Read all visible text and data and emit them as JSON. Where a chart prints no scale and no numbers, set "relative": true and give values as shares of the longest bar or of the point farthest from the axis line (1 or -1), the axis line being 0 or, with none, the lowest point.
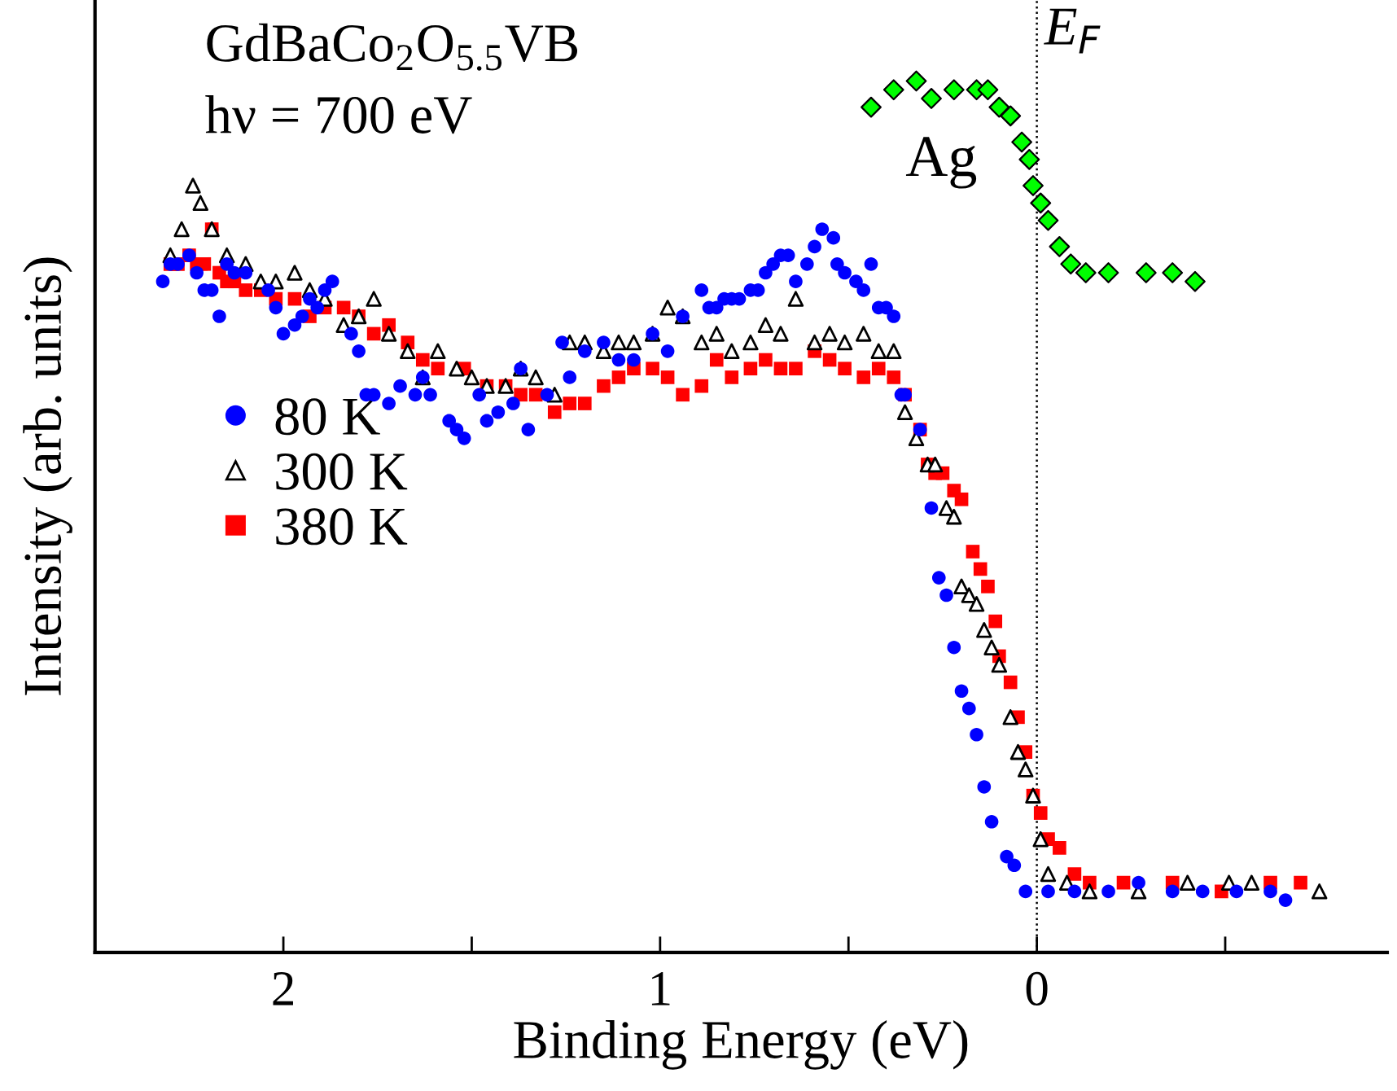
{
  "chart_data": {
    "type": "scatter",
    "xlabel": "Binding Energy (eV)",
    "ylabel": "Intensity (arb. units)",
    "relative": true,
    "xlim": [
      2.5,
      -0.93
    ],
    "xticks": [
      2,
      {
        "value": 1.5,
        "label": null
      },
      1,
      {
        "value": 0.5,
        "label": null
      },
      0,
      {
        "value": -0.5,
        "label": null
      }
    ],
    "tick_labels": "x",
    "grid": false,
    "legend": "center left",
    "annotations": [
      "GdBaCo$_{2}$O$_{5.5}$VB",
      "hν = 700 eV",
      "Ag"
    ],
    "ref_lines": [
      {
        "axis": "x",
        "value": 0,
        "label": "E$_{F}$",
        "color": "#000000",
        "line_style": "dotted"
      }
    ],
    "series": [
      {
        "name": "80 K",
        "color": "#0000ff",
        "marker": "circle",
        "x": [
          2.32,
          2.3,
          2.28,
          2.25,
          2.23,
          2.21,
          2.19,
          2.17,
          2.15,
          2.13,
          2.1,
          2.04,
          2.02,
          2.0,
          1.97,
          1.95,
          1.93,
          1.91,
          1.89,
          1.87,
          1.82,
          1.8,
          1.78,
          1.76,
          1.72,
          1.69,
          1.65,
          1.63,
          1.61,
          1.56,
          1.54,
          1.52,
          1.48,
          1.46,
          1.43,
          1.39,
          1.37,
          1.35,
          1.3,
          1.26,
          1.24,
          1.2,
          1.15,
          1.11,
          1.07,
          1.02,
          0.98,
          0.94,
          0.89,
          0.87,
          0.85,
          0.83,
          0.81,
          0.79,
          0.76,
          0.74,
          0.72,
          0.7,
          0.68,
          0.66,
          0.64,
          0.61,
          0.59,
          0.57,
          0.54,
          0.53,
          0.51,
          0.48,
          0.46,
          0.44,
          0.42,
          0.4,
          0.38,
          0.36,
          0.35,
          0.31,
          0.28,
          0.26,
          0.24,
          0.22,
          0.2,
          0.18,
          0.16,
          0.14,
          0.12,
          0.08,
          0.06,
          0.03,
          -0.03,
          -0.1,
          -0.19,
          -0.27,
          -0.36,
          -0.44,
          -0.53,
          -0.62,
          -0.66
        ],
        "values": [
          0.77,
          0.79,
          0.79,
          0.8,
          0.78,
          0.76,
          0.76,
          0.73,
          0.79,
          0.78,
          0.78,
          0.76,
          0.74,
          0.71,
          0.72,
          0.73,
          0.75,
          0.74,
          0.76,
          0.77,
          0.71,
          0.69,
          0.64,
          0.64,
          0.63,
          0.65,
          0.64,
          0.66,
          0.64,
          0.61,
          0.6,
          0.59,
          0.64,
          0.61,
          0.62,
          0.63,
          0.67,
          0.6,
          0.64,
          0.7,
          0.66,
          0.69,
          0.7,
          0.68,
          0.68,
          0.71,
          0.69,
          0.73,
          0.76,
          0.74,
          0.74,
          0.75,
          0.75,
          0.75,
          0.76,
          0.76,
          0.78,
          0.79,
          0.8,
          0.8,
          0.77,
          0.79,
          0.81,
          0.83,
          0.82,
          0.79,
          0.78,
          0.77,
          0.76,
          0.79,
          0.74,
          0.74,
          0.73,
          0.64,
          0.64,
          0.6,
          0.51,
          0.43,
          0.41,
          0.35,
          0.3,
          0.28,
          0.25,
          0.19,
          0.15,
          0.11,
          0.1,
          0.07,
          0.07,
          0.07,
          0.07,
          0.08,
          0.07,
          0.07,
          0.07,
          0.07,
          0.06
        ]
      },
      {
        "name": "300 K",
        "color": "#000000",
        "marker": "triangle",
        "x": [
          2.3,
          2.27,
          2.24,
          2.22,
          2.19,
          2.15,
          2.1,
          2.06,
          2.02,
          1.97,
          1.93,
          1.89,
          1.84,
          1.8,
          1.76,
          1.72,
          1.67,
          1.63,
          1.59,
          1.54,
          1.5,
          1.46,
          1.41,
          1.37,
          1.33,
          1.28,
          1.24,
          1.2,
          1.15,
          1.11,
          1.07,
          1.02,
          0.98,
          0.94,
          0.89,
          0.85,
          0.81,
          0.76,
          0.72,
          0.68,
          0.64,
          0.59,
          0.55,
          0.51,
          0.46,
          0.42,
          0.38,
          0.35,
          0.32,
          0.29,
          0.27,
          0.24,
          0.22,
          0.2,
          0.18,
          0.16,
          0.14,
          0.12,
          0.1,
          0.07,
          0.05,
          0.03,
          0.01,
          -0.01,
          -0.03,
          -0.08,
          -0.14,
          -0.27,
          -0.4,
          -0.51,
          -0.57,
          -0.75
        ],
        "values": [
          0.8,
          0.83,
          0.88,
          0.86,
          0.83,
          0.8,
          0.79,
          0.77,
          0.77,
          0.78,
          0.76,
          0.75,
          0.72,
          0.73,
          0.75,
          0.71,
          0.69,
          0.66,
          0.69,
          0.67,
          0.66,
          0.65,
          0.65,
          0.67,
          0.66,
          0.64,
          0.7,
          0.7,
          0.69,
          0.7,
          0.7,
          0.71,
          0.74,
          0.73,
          0.7,
          0.71,
          0.69,
          0.7,
          0.72,
          0.71,
          0.75,
          0.7,
          0.71,
          0.7,
          0.71,
          0.69,
          0.69,
          0.62,
          0.59,
          0.56,
          0.56,
          0.51,
          0.5,
          0.42,
          0.41,
          0.4,
          0.37,
          0.35,
          0.33,
          0.27,
          0.23,
          0.21,
          0.18,
          0.13,
          0.09,
          0.08,
          0.07,
          0.07,
          0.08,
          0.08,
          0.08,
          0.07
        ]
      },
      {
        "name": "380 K",
        "color": "#ff0000",
        "marker": "square",
        "x": [
          2.3,
          2.28,
          2.25,
          2.23,
          2.21,
          2.19,
          2.17,
          2.15,
          2.13,
          2.1,
          2.06,
          2.02,
          1.97,
          1.93,
          1.89,
          1.84,
          1.8,
          1.76,
          1.72,
          1.67,
          1.63,
          1.59,
          1.52,
          1.46,
          1.41,
          1.37,
          1.33,
          1.28,
          1.24,
          1.2,
          1.15,
          1.11,
          1.07,
          1.02,
          0.98,
          0.94,
          0.89,
          0.85,
          0.81,
          0.76,
          0.72,
          0.68,
          0.64,
          0.59,
          0.55,
          0.51,
          0.46,
          0.42,
          0.38,
          0.35,
          0.31,
          0.29,
          0.27,
          0.25,
          0.22,
          0.2,
          0.17,
          0.15,
          0.13,
          0.11,
          0.1,
          0.07,
          0.05,
          0.03,
          0.01,
          -0.01,
          -0.03,
          -0.06,
          -0.1,
          -0.14,
          -0.23,
          -0.36,
          -0.49,
          -0.62,
          -0.7
        ],
        "values": [
          0.79,
          0.79,
          0.8,
          0.79,
          0.79,
          0.83,
          0.78,
          0.77,
          0.77,
          0.76,
          0.76,
          0.75,
          0.75,
          0.73,
          0.74,
          0.74,
          0.73,
          0.71,
          0.72,
          0.7,
          0.68,
          0.67,
          0.67,
          0.65,
          0.65,
          0.64,
          0.64,
          0.62,
          0.63,
          0.63,
          0.65,
          0.66,
          0.67,
          0.67,
          0.66,
          0.64,
          0.65,
          0.68,
          0.66,
          0.67,
          0.68,
          0.67,
          0.67,
          0.69,
          0.68,
          0.67,
          0.66,
          0.67,
          0.66,
          0.64,
          0.6,
          0.56,
          0.55,
          0.55,
          0.53,
          0.52,
          0.46,
          0.44,
          0.42,
          0.38,
          0.34,
          0.31,
          0.27,
          0.23,
          0.18,
          0.16,
          0.13,
          0.12,
          0.09,
          0.08,
          0.08,
          0.08,
          0.07,
          0.08,
          0.08
        ]
      },
      {
        "color": "#00ff00",
        "marker": "diamond",
        "x": [
          0.44,
          0.38,
          0.32,
          0.28,
          0.22,
          0.16,
          0.13,
          0.1,
          0.07,
          0.04,
          0.02,
          0.01,
          -0.01,
          -0.03,
          -0.06,
          -0.09,
          -0.13,
          -0.19,
          -0.29,
          -0.36,
          -0.42
        ],
        "values": [
          0.97,
          0.99,
          1.0,
          0.98,
          0.99,
          0.99,
          0.99,
          0.97,
          0.96,
          0.93,
          0.91,
          0.88,
          0.86,
          0.84,
          0.81,
          0.79,
          0.78,
          0.78,
          0.78,
          0.78,
          0.77
        ]
      }
    ]
  }
}
